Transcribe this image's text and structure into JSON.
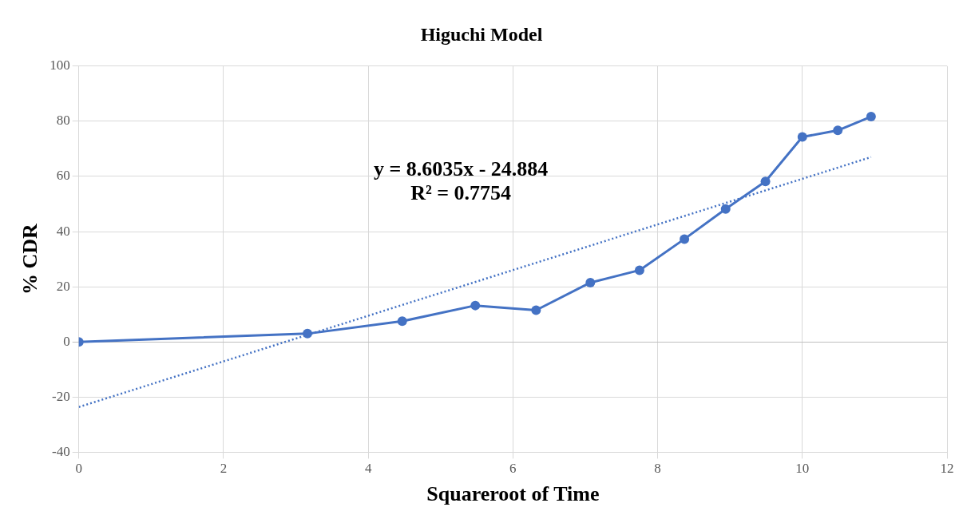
{
  "chart_data": {
    "type": "line",
    "title": "Higuchi Model",
    "xlabel": "Squareroot of Time",
    "ylabel": "% CDR",
    "xlim": [
      0,
      12
    ],
    "xticks": [
      0,
      2,
      4,
      6,
      8,
      10,
      12
    ],
    "ylim": [
      -40,
      100
    ],
    "yticks": [
      -40,
      -20,
      0,
      20,
      40,
      60,
      80,
      100
    ],
    "grid": true,
    "legend": false,
    "annotations": [
      "y = 8.6035x - 24.884",
      "R² = 0.7754"
    ],
    "series": [
      {
        "type": "line",
        "color": "#4472c4",
        "marker": "circle",
        "line_style": "solid",
        "x": [
          0,
          3.16,
          4.47,
          5.48,
          6.32,
          7.07,
          7.75,
          8.37,
          8.94,
          9.49,
          10,
          10.49,
          10.95
        ],
        "values": [
          0,
          3,
          7.5,
          13.2,
          11.5,
          21.5,
          26,
          37.3,
          48.2,
          58.2,
          74.3,
          76.7,
          81.7
        ]
      },
      {
        "type": "line",
        "color": "#4472c4",
        "marker": "none",
        "line_style": "dotted",
        "x": [
          0,
          10.95
        ],
        "values": [
          -23.6,
          67
        ]
      }
    ]
  }
}
